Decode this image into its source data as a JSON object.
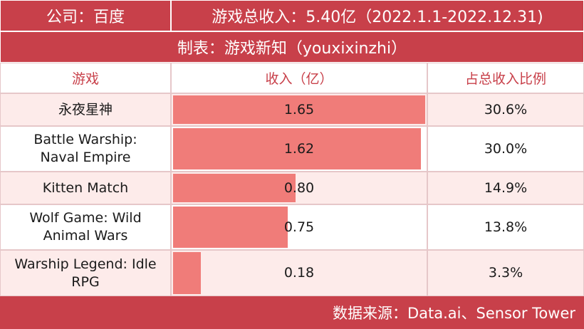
{
  "header": {
    "company": "公司：百度",
    "total_revenue": "游戏总收入：5.40亿（2022.1.1-2022.12.31)",
    "made_by": "制表：游戏新知（youxixinzhi）"
  },
  "columns": {
    "game": "游戏",
    "revenue": "收入（亿）",
    "share": "占总收入比例"
  },
  "rows": [
    {
      "game": "永夜星神",
      "revenue": "1.65",
      "share": "30.6%"
    },
    {
      "game": "Battle Warship: Naval Empire",
      "revenue": "1.62",
      "share": "30.0%"
    },
    {
      "game": "Kitten Match",
      "revenue": "0.80",
      "share": "14.9%"
    },
    {
      "game": "Wolf Game: Wild Animal Wars",
      "revenue": "0.75",
      "share": "13.8%"
    },
    {
      "game": "Warship Legend: Idle RPG",
      "revenue": "0.18",
      "share": "3.3%"
    }
  ],
  "bar_scale_max": 1.65,
  "footer": {
    "source": "数据来源：Data.ai、Sensor Tower"
  },
  "colors": {
    "header_bg": "#c8404a",
    "bar_fill": "#f07c79",
    "row_tint": "#fdebea"
  }
}
